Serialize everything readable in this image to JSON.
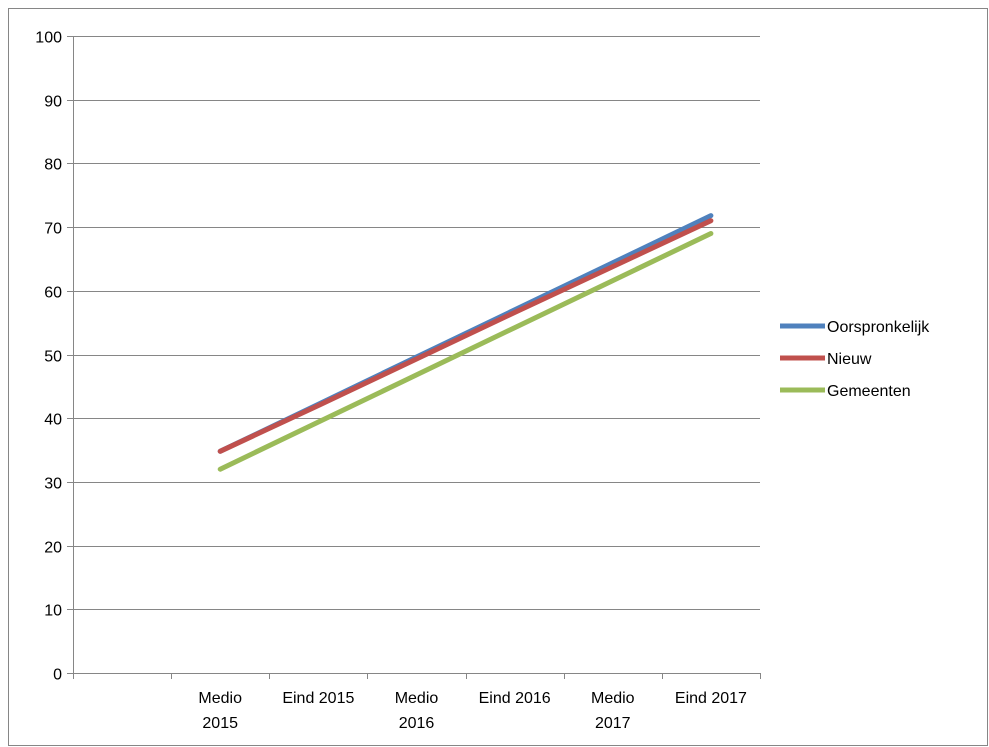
{
  "chart_data": {
    "type": "line",
    "title": "",
    "xlabel": "",
    "ylabel": "",
    "categories": [
      "",
      "Medio 2015",
      "Eind 2015",
      "Medio 2016",
      "Eind 2016",
      "Medio 2017",
      "Eind 2017"
    ],
    "category_lines": [
      [
        ""
      ],
      [
        "Medio",
        "2015"
      ],
      [
        "Eind 2015"
      ],
      [
        "Medio",
        "2016"
      ],
      [
        "Eind 2016"
      ],
      [
        "Medio",
        "2017"
      ],
      [
        "Eind 2017"
      ]
    ],
    "ylim": [
      0,
      100
    ],
    "yticks": [
      0,
      10,
      20,
      30,
      40,
      50,
      60,
      70,
      80,
      90,
      100
    ],
    "grid": true,
    "legend": "right",
    "series": [
      {
        "name": "Oorspronkelijk",
        "color": "#4F81BD",
        "values": [
          null,
          34.8,
          42.2,
          49.6,
          57.0,
          64.4,
          71.8
        ]
      },
      {
        "name": "Nieuw",
        "color": "#C0504D",
        "values": [
          null,
          34.8,
          42.0,
          49.3,
          56.6,
          63.8,
          71.0
        ]
      },
      {
        "name": "Gemeenten",
        "color": "#9BBB59",
        "values": [
          null,
          32.0,
          39.4,
          46.8,
          54.2,
          61.6,
          69.0
        ]
      }
    ]
  }
}
